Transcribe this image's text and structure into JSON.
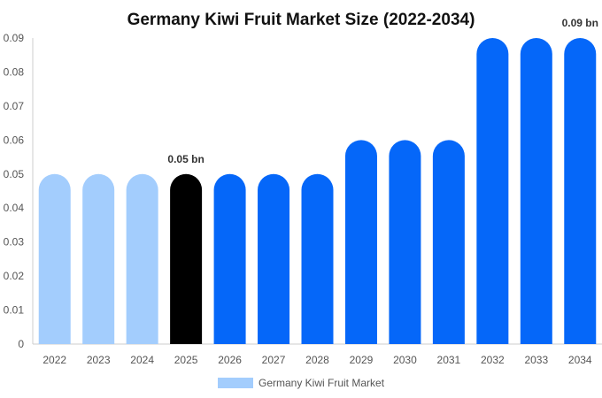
{
  "chart_data": {
    "type": "bar",
    "title": "Germany Kiwi Fruit Market Size (2022-2034)",
    "xlabel": "",
    "ylabel": "",
    "categories": [
      "2022",
      "2023",
      "2024",
      "2025",
      "2026",
      "2027",
      "2028",
      "2029",
      "2030",
      "2031",
      "2032",
      "2033",
      "2034"
    ],
    "series": [
      {
        "name": "Germany Kiwi Fruit Market",
        "values": [
          0.05,
          0.05,
          0.05,
          0.05,
          0.05,
          0.05,
          0.05,
          0.06,
          0.06,
          0.06,
          0.09,
          0.09,
          0.09
        ]
      }
    ],
    "ylim": [
      0,
      0.09
    ],
    "yticks": [
      "0",
      "0.01",
      "0.02",
      "0.03",
      "0.04",
      "0.05",
      "0.06",
      "0.07",
      "0.08",
      "0.09"
    ],
    "data_labels": [
      {
        "index": 3,
        "text": "0.05 bn"
      },
      {
        "index": 12,
        "text": "0.09 bn"
      }
    ],
    "bar_colors": [
      "#a3cdfd",
      "#a3cdfd",
      "#a3cdfd",
      "#000000",
      "#0567f9",
      "#0567f9",
      "#0567f9",
      "#0567f9",
      "#0567f9",
      "#0567f9",
      "#0567f9",
      "#0567f9",
      "#0567f9"
    ],
    "legend_color": "#a3cdfd",
    "legend_position": "bottom",
    "grid": false
  }
}
